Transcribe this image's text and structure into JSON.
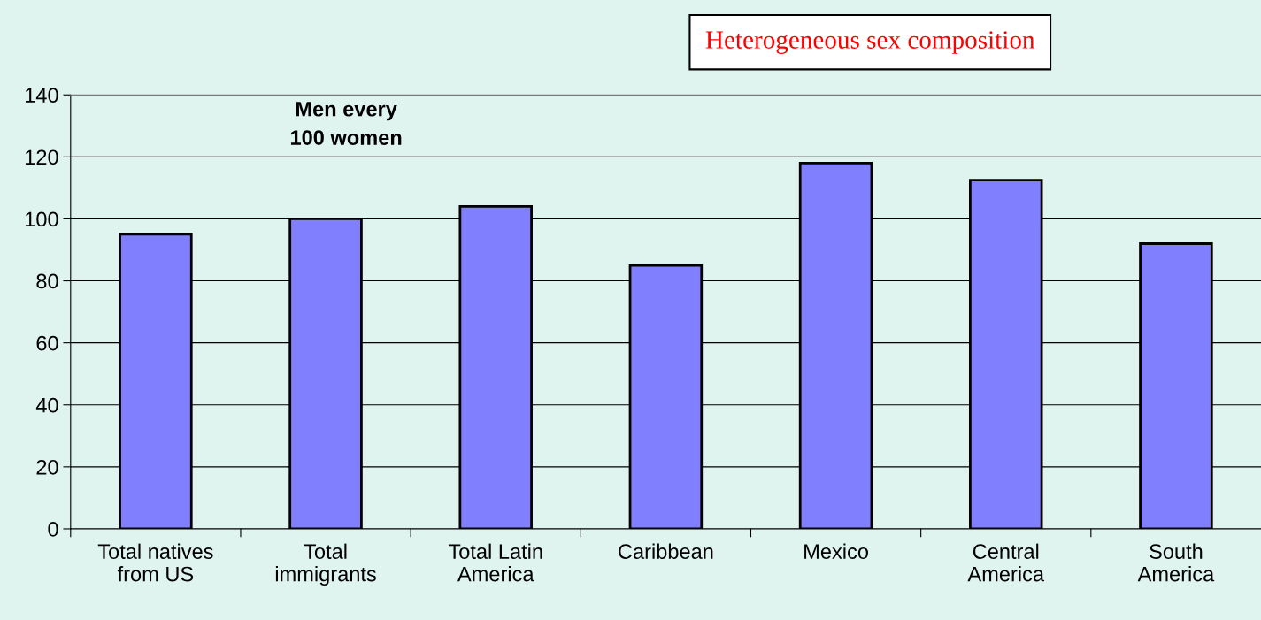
{
  "chart_data": {
    "type": "bar",
    "title": "Heterogeneous sex composition",
    "categories": [
      "Total natives\nfrom US",
      "Total\nimmigrants",
      "Total Latin\nAmerica",
      "Caribbean",
      "Mexico",
      "Central\nAmerica",
      "South\nAmerica"
    ],
    "values": [
      95,
      100,
      104,
      85,
      118,
      112.5,
      92
    ],
    "color": "#8080ff",
    "ylim": [
      0,
      140
    ],
    "yticks": [
      0,
      20,
      40,
      60,
      80,
      100,
      120,
      140
    ],
    "grid": "y",
    "legend": false,
    "annotations": [
      "Men every\n100 women"
    ]
  }
}
